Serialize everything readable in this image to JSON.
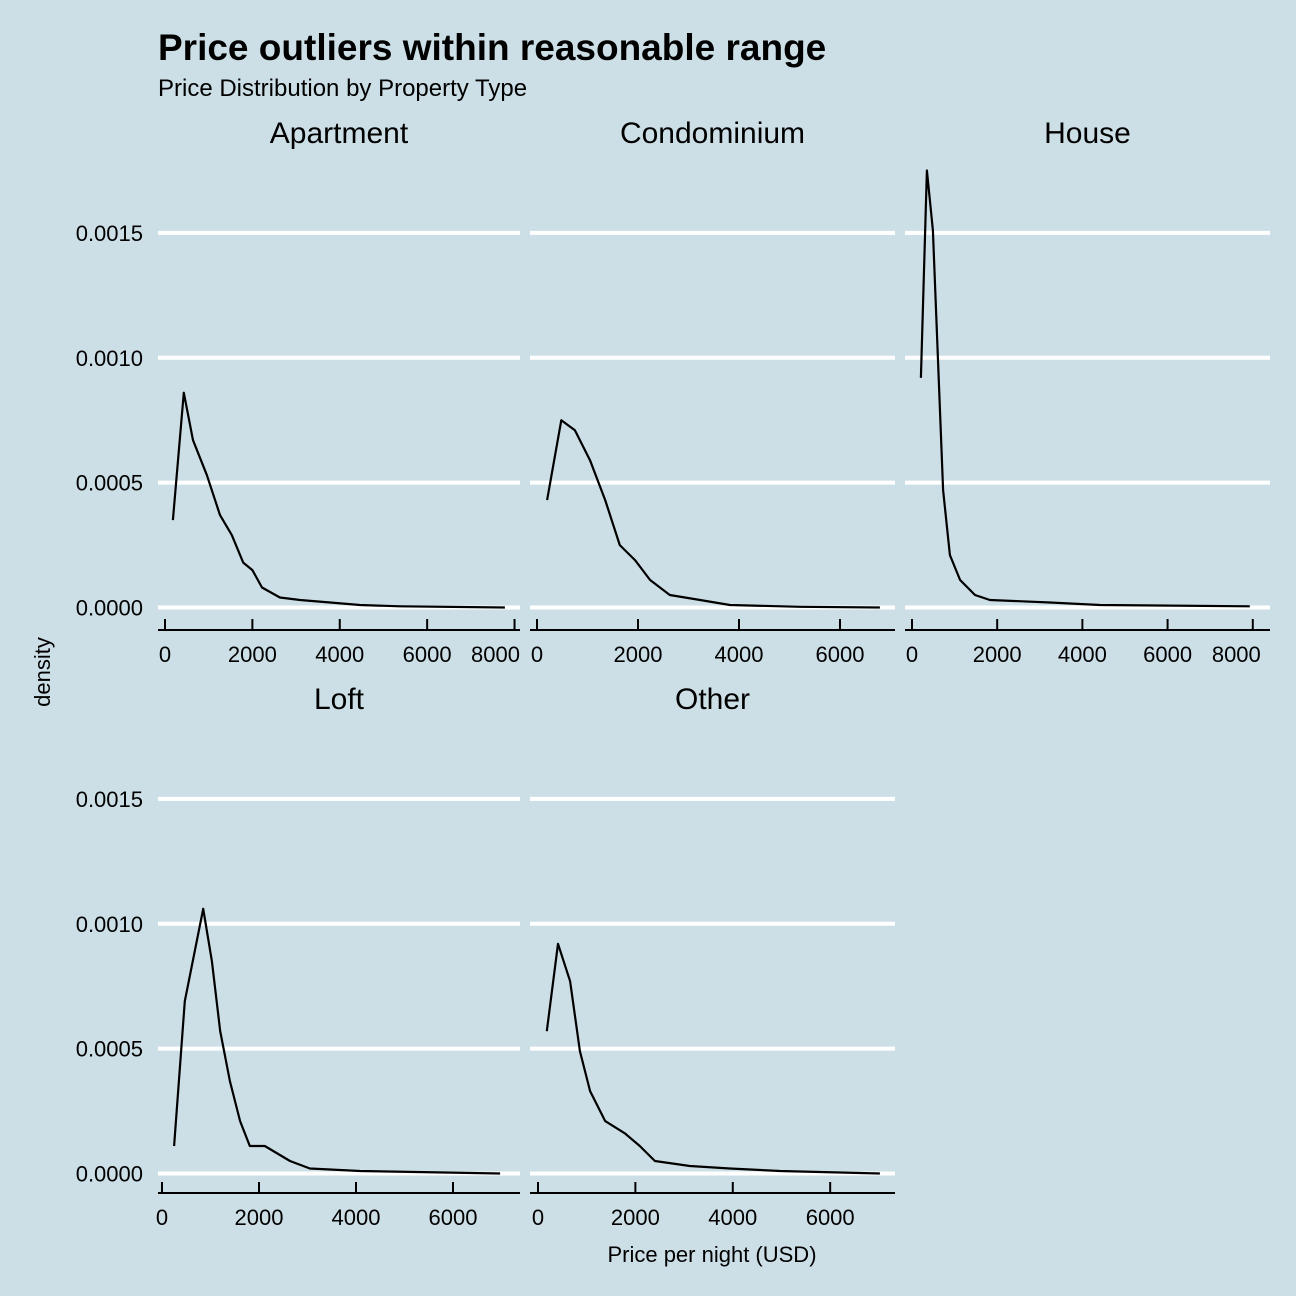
{
  "chart_data": {
    "type": "line",
    "title": "Price outliers within reasonable range",
    "subtitle": "Price Distribution by Property Type",
    "xlabel": "Price per night (USD)",
    "ylabel": "density",
    "ylim": [
      -5e-05,
      0.00178
    ],
    "yticks": [
      0,
      0.0005,
      0.001,
      0.0015
    ],
    "ytick_labels": [
      "0.0000",
      "0.0005",
      "0.0010",
      "0.0015"
    ],
    "grid": "horizontal major",
    "colors": {
      "background": "#cddfe6",
      "grid": "#ffffff",
      "line": "#000000"
    },
    "panels": [
      {
        "name": "Apartment",
        "xlim": [
          -160,
          8125
        ],
        "xticks": [
          0,
          2000,
          4000,
          6000,
          8000
        ],
        "x": [
          180,
          430,
          640,
          960,
          1260,
          1530,
          1790,
          2000,
          2220,
          2630,
          3090,
          3780,
          4460,
          5380,
          7780
        ],
        "y": [
          0.00035,
          0.00086,
          0.00067,
          0.00053,
          0.00037,
          0.00029,
          0.00018,
          0.00015,
          8e-05,
          4e-05,
          3e-05,
          2e-05,
          1e-05,
          5e-06,
          0
        ]
      },
      {
        "name": "Condominium",
        "xlim": [
          -139,
          7089
        ],
        "xticks": [
          0,
          2000,
          4000,
          6000
        ],
        "x": [
          200,
          480,
          750,
          1050,
          1350,
          1640,
          1940,
          2240,
          2630,
          3230,
          3820,
          5210,
          6790
        ],
        "y": [
          0.00043,
          0.00075,
          0.00071,
          0.00059,
          0.00043,
          0.00025,
          0.00019,
          0.00011,
          5e-05,
          3e-05,
          1e-05,
          3e-06,
          0
        ]
      },
      {
        "name": "House",
        "xlim": [
          -164,
          8404
        ],
        "xticks": [
          0,
          2000,
          4000,
          6000,
          8000
        ],
        "x": [
          210,
          350,
          490,
          610,
          730,
          890,
          1130,
          1480,
          1830,
          3240,
          4410,
          7930
        ],
        "y": [
          0.00092,
          0.00175,
          0.00151,
          0.00099,
          0.00047,
          0.00021,
          0.00011,
          5e-05,
          3e-05,
          2e-05,
          1e-05,
          5e-06
        ]
      },
      {
        "name": "Loft",
        "xlim": [
          -82,
          7381
        ],
        "xticks": [
          0,
          2000,
          4000,
          6000
        ],
        "x": [
          250,
          470,
          850,
          1030,
          1200,
          1400,
          1610,
          1810,
          2120,
          2640,
          3050,
          4080,
          6970
        ],
        "y": [
          0.00011,
          0.00069,
          0.00106,
          0.00085,
          0.00057,
          0.00037,
          0.00021,
          0.00011,
          0.00011,
          5e-05,
          2e-05,
          1e-05,
          0
        ]
      },
      {
        "name": "Other",
        "xlim": [
          -164,
          7331
        ],
        "xticks": [
          0,
          2000,
          4000,
          6000
        ],
        "x": [
          180,
          410,
          660,
          860,
          1070,
          1380,
          1790,
          2090,
          2400,
          3120,
          3940,
          4970,
          7020
        ],
        "y": [
          0.00057,
          0.00092,
          0.00077,
          0.00049,
          0.00033,
          0.00021,
          0.00016,
          0.00011,
          5e-05,
          3e-05,
          2e-05,
          1e-05,
          0
        ]
      }
    ]
  }
}
